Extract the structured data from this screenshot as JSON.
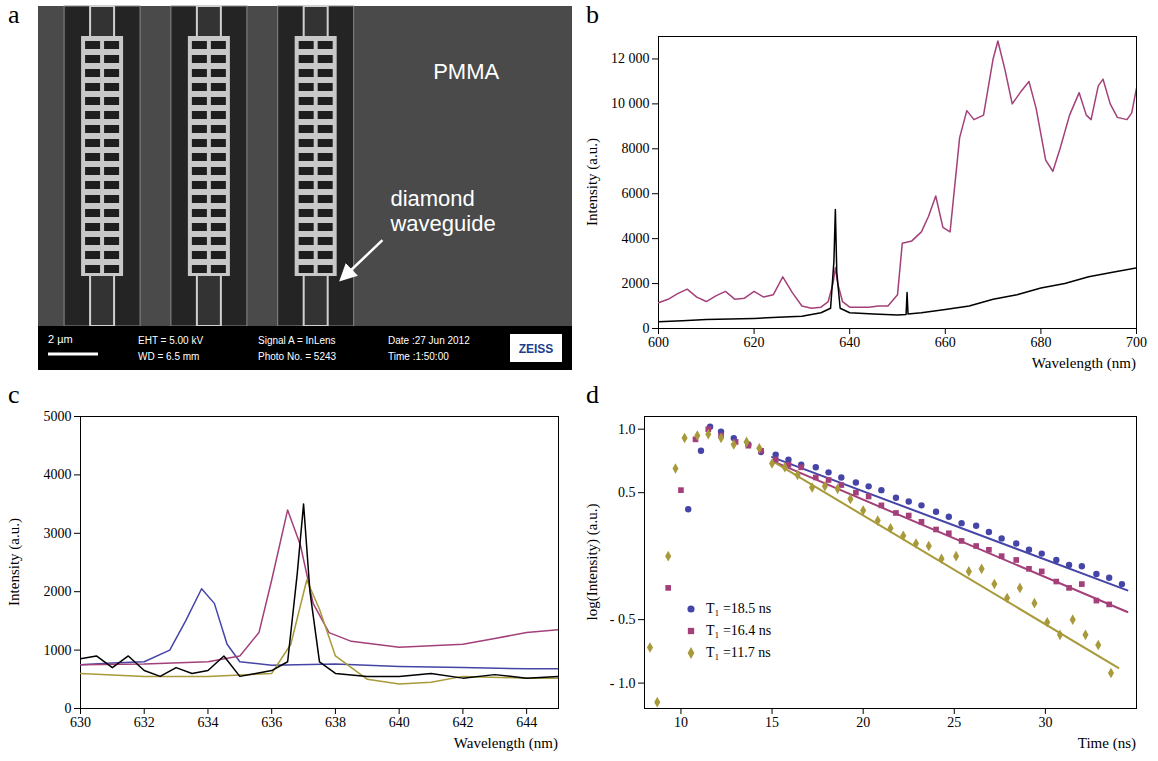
{
  "image_panel": {
    "panel_label": "a",
    "waveguide_count": 3,
    "material_label": "PMMA",
    "arrow_label": "diamond waveguide",
    "info_bar": {
      "scale_bar": "2 µm",
      "lines": [
        [
          "EHT = 5.00 kV",
          "WD = 6.5 mm"
        ],
        [
          "Signal A = InLens",
          "Photo No. = 5243"
        ],
        [
          "Date :27 Jun 2012",
          "Time :1:50:00"
        ]
      ],
      "logo": "ZEISS"
    }
  },
  "chart_data": [
    {
      "type": "line",
      "title": "b",
      "x_label": "Wavelength (nm)",
      "y_label": "Intensity (a.u.)",
      "xlim": [
        600,
        700
      ],
      "xticks": [
        600,
        620,
        640,
        660,
        680,
        700
      ],
      "ylim": [
        0,
        13000
      ],
      "yticks": [
        0,
        2000,
        4000,
        6000,
        8000,
        {
          "value": 10000,
          "label": "10 000"
        },
        {
          "value": 12000,
          "label": "12 000"
        }
      ],
      "series": [
        {
          "color": "#a3407a",
          "x": [
            600,
            602,
            604,
            606,
            608,
            610,
            612,
            614,
            616,
            618,
            620,
            622,
            624,
            626,
            628,
            630,
            632,
            634,
            635.5,
            636.5,
            637,
            637.5,
            638.5,
            640,
            642,
            644,
            646,
            648,
            650,
            651,
            653,
            655,
            656.5,
            658,
            659.5,
            661,
            663,
            664.5,
            666,
            668,
            670,
            671,
            672.5,
            674,
            676,
            677.5,
            679,
            681,
            682.5,
            684,
            686,
            688,
            689.5,
            690.5,
            692,
            693,
            694.5,
            696,
            698,
            699,
            700
          ],
          "values": [
            1150,
            1300,
            1550,
            1750,
            1400,
            1200,
            1450,
            1650,
            1300,
            1350,
            1650,
            1400,
            1500,
            2300,
            1600,
            1000,
            900,
            950,
            1200,
            2000,
            2700,
            2000,
            1200,
            950,
            950,
            950,
            1000,
            1000,
            1500,
            3800,
            3900,
            4300,
            5000,
            5900,
            4500,
            4300,
            8500,
            9700,
            9300,
            9500,
            12000,
            12800,
            11500,
            10000,
            10600,
            11000,
            9800,
            7500,
            7000,
            8000,
            9500,
            10500,
            9500,
            9300,
            10800,
            11100,
            10000,
            9400,
            9300,
            9600,
            10700
          ]
        },
        {
          "color": "#000000",
          "x": [
            600,
            605,
            610,
            615,
            620,
            625,
            630,
            634,
            636,
            636.7,
            637,
            637.3,
            638,
            640,
            645,
            650,
            651.8,
            652,
            652.2,
            655,
            660,
            665,
            670,
            675,
            680,
            685,
            690,
            695,
            700
          ],
          "values": [
            300,
            350,
            400,
            420,
            450,
            500,
            550,
            700,
            900,
            3000,
            5300,
            2500,
            900,
            700,
            650,
            600,
            620,
            1600,
            650,
            700,
            850,
            1000,
            1300,
            1500,
            1800,
            2000,
            2300,
            2500,
            2700
          ]
        }
      ]
    },
    {
      "type": "line",
      "title": "c",
      "x_label": "Wavelength (nm)",
      "y_label": "Intensity (a.u.)",
      "xlim": [
        630,
        645
      ],
      "xticks": [
        630,
        632,
        634,
        636,
        638,
        640,
        642,
        644
      ],
      "ylim": [
        0,
        5000
      ],
      "yticks": [
        0,
        1000,
        2000,
        3000,
        4000,
        5000
      ],
      "series": [
        {
          "color": "#4545a8",
          "x": [
            630,
            631,
            632,
            632.8,
            633.3,
            633.8,
            634.2,
            634.6,
            635,
            636,
            638,
            640,
            642,
            644,
            645
          ],
          "values": [
            750,
            780,
            800,
            1000,
            1500,
            2050,
            1800,
            1100,
            800,
            740,
            760,
            720,
            700,
            680,
            680
          ]
        },
        {
          "color": "#a3407a",
          "x": [
            630,
            632,
            634,
            635,
            635.6,
            636,
            636.5,
            636.9,
            637.3,
            637.8,
            638.5,
            640,
            642,
            643,
            644,
            645
          ],
          "values": [
            750,
            760,
            800,
            900,
            1300,
            2200,
            3400,
            2800,
            1800,
            1300,
            1150,
            1050,
            1100,
            1200,
            1300,
            1350
          ]
        },
        {
          "color": "#a89a3a",
          "x": [
            630,
            632,
            634,
            636,
            636.6,
            637.1,
            637.5,
            638,
            639,
            640,
            641,
            642,
            644,
            645
          ],
          "values": [
            600,
            550,
            550,
            600,
            1100,
            2200,
            1700,
            900,
            500,
            420,
            450,
            550,
            520,
            520
          ]
        },
        {
          "color": "#000000",
          "x": [
            630,
            630.5,
            631,
            631.5,
            632,
            632.5,
            633,
            633.5,
            634,
            634.5,
            635,
            635.5,
            636,
            636.5,
            636.8,
            637,
            637.2,
            637.5,
            638,
            639,
            640,
            641,
            642,
            643,
            644,
            645
          ],
          "values": [
            850,
            900,
            700,
            900,
            650,
            550,
            700,
            600,
            650,
            900,
            550,
            600,
            650,
            800,
            2300,
            3500,
            2000,
            800,
            600,
            550,
            550,
            600,
            520,
            580,
            520,
            550
          ]
        }
      ]
    },
    {
      "type": "scatter",
      "title": "d",
      "x_label": "Time (ns)",
      "y_label": "log(Intensity) (a.u.)",
      "xlim": [
        8,
        35
      ],
      "xticks": [
        10,
        15,
        20,
        25,
        30
      ],
      "ylim": [
        -1.2,
        1.1
      ],
      "yticks": [
        {
          "value": -1,
          "label": "- 1.0"
        },
        {
          "value": -0.5,
          "label": "- 0.5"
        },
        0.5,
        {
          "value": 1,
          "label": "1.0"
        }
      ],
      "legend": "lower left",
      "series": [
        {
          "name": "T₁ =18.5 ns",
          "color": "#4545a8",
          "marker": "circle",
          "x": [
            10.4,
            11.1,
            11.6,
            12.2,
            12.9,
            13.7,
            14.4,
            15.2,
            15.9,
            16.6,
            17.4,
            18.1,
            18.8,
            19.6,
            20.3,
            21.0,
            21.8,
            22.5,
            23.2,
            24.0,
            24.7,
            25.4,
            26.2,
            26.9,
            27.6,
            28.4,
            29.1,
            29.8,
            30.6,
            31.3,
            32.0,
            32.8,
            33.5,
            34.2
          ],
          "values": [
            0.37,
            0.83,
            1.02,
            0.98,
            0.93,
            0.88,
            0.82,
            0.8,
            0.76,
            0.72,
            0.7,
            0.66,
            0.62,
            0.58,
            0.55,
            0.52,
            0.46,
            0.43,
            0.4,
            0.35,
            0.31,
            0.26,
            0.24,
            0.19,
            0.14,
            0.1,
            0.05,
            0.02,
            -0.03,
            -0.07,
            -0.08,
            -0.14,
            -0.17,
            -0.22
          ],
          "fit": {
            "x": [
              15,
              34.5
            ],
            "y": [
              0.78,
              -0.27
            ]
          }
        },
        {
          "name": "T₁ =16.4 ns",
          "color": "#a3407a",
          "marker": "square",
          "x": [
            9.3,
            10.0,
            10.8,
            11.5,
            12.2,
            13.0,
            13.7,
            14.4,
            15.2,
            15.9,
            16.6,
            17.4,
            18.1,
            18.8,
            19.6,
            20.3,
            21.0,
            21.8,
            22.5,
            23.2,
            24.0,
            24.7,
            25.4,
            26.2,
            26.9,
            27.6,
            28.4,
            29.1,
            29.8,
            30.6,
            31.3,
            32.0,
            32.8,
            33.5
          ],
          "values": [
            -0.25,
            0.52,
            0.92,
            1.0,
            0.95,
            0.9,
            0.87,
            0.83,
            0.76,
            0.72,
            0.7,
            0.62,
            0.6,
            0.56,
            0.5,
            0.47,
            0.4,
            0.34,
            0.32,
            0.27,
            0.21,
            0.18,
            0.12,
            0.08,
            0.05,
            0,
            -0.03,
            -0.1,
            -0.12,
            -0.2,
            -0.25,
            -0.22,
            -0.35,
            -0.38
          ],
          "fit": {
            "x": [
              15,
              34.5
            ],
            "y": [
              0.75,
              -0.44
            ]
          }
        },
        {
          "name": "T₁ =11.7 ns",
          "color": "#a89a3a",
          "marker": "diamond",
          "x": [
            8.3,
            8.7,
            9.3,
            9.7,
            10.2,
            10.9,
            11.5,
            12.2,
            12.9,
            13.6,
            14.3,
            15.0,
            15.7,
            16.4,
            17.2,
            17.9,
            18.6,
            19.3,
            20.0,
            20.8,
            21.5,
            22.2,
            22.9,
            23.6,
            24.3,
            25.1,
            25.8,
            26.5,
            27.2,
            27.9,
            28.6,
            29.4,
            30.1,
            30.8,
            31.5,
            32.2,
            32.9,
            33.6
          ],
          "values": [
            -0.72,
            -1.15,
            0,
            0.69,
            0.93,
            0.95,
            0.96,
            0.93,
            0.88,
            0.9,
            0.85,
            0.73,
            0.7,
            0.64,
            0.54,
            0.55,
            0.53,
            0.45,
            0.36,
            0.28,
            0.22,
            0.16,
            0.1,
            0.08,
            -0.02,
            0,
            -0.12,
            -0.1,
            -0.22,
            -0.33,
            -0.25,
            -0.37,
            -0.52,
            -0.62,
            -0.5,
            -0.62,
            -0.7,
            -0.92
          ],
          "fit": {
            "x": [
              15,
              34
            ],
            "y": [
              0.75,
              -0.88
            ]
          }
        }
      ]
    }
  ]
}
